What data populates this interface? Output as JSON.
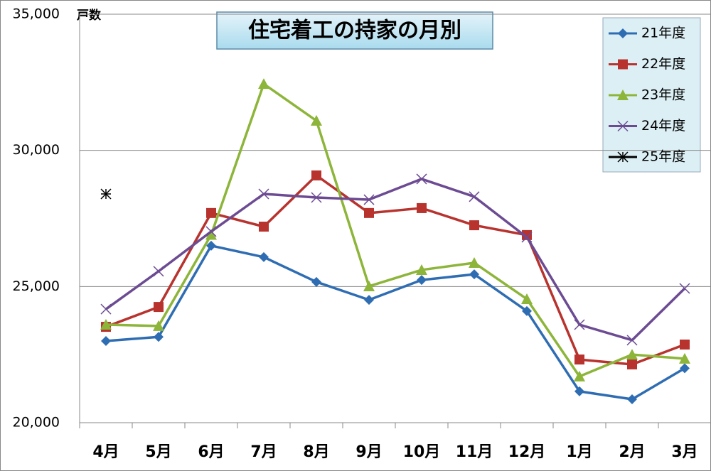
{
  "chart_data": {
    "type": "line",
    "title": "住宅着工の持家の月別",
    "ylabel": "戸数",
    "categories": [
      "4月",
      "5月",
      "6月",
      "7月",
      "8月",
      "9月",
      "10月",
      "11月",
      "12月",
      "1月",
      "2月",
      "3月"
    ],
    "series": [
      {
        "name": "21年度",
        "color": "#2f6db3",
        "marker": "diamond",
        "values": [
          23000,
          23150,
          26500,
          26080,
          25170,
          24510,
          25240,
          25450,
          24100,
          21150,
          20860,
          22000
        ]
      },
      {
        "name": "22年度",
        "color": "#b8332e",
        "marker": "square",
        "values": [
          23520,
          24250,
          27700,
          27200,
          29080,
          27700,
          27880,
          27250,
          26890,
          22320,
          22140,
          22870
        ]
      },
      {
        "name": "23年度",
        "color": "#8db53a",
        "marker": "triangle",
        "values": [
          23600,
          23550,
          26900,
          32440,
          31090,
          25010,
          25610,
          25870,
          24540,
          21700,
          22500,
          22350
        ]
      },
      {
        "name": "24年度",
        "color": "#6c4b93",
        "marker": "x",
        "values": [
          24170,
          25560,
          27020,
          28400,
          28270,
          28190,
          28950,
          28300,
          26810,
          23600,
          23030,
          24930
        ]
      },
      {
        "name": "25年度",
        "color": "#000000",
        "marker": "asterisk",
        "values": [
          28400,
          null,
          null,
          null,
          null,
          null,
          null,
          null,
          null,
          null,
          null,
          null
        ]
      }
    ],
    "ylim": [
      20000,
      35000
    ],
    "yticks": [
      {
        "value": 20000,
        "label": "20,000"
      },
      {
        "value": 25000,
        "label": "25,000"
      },
      {
        "value": 30000,
        "label": "30,000"
      },
      {
        "value": 35000,
        "label": "35,000"
      }
    ],
    "grid": true,
    "legend": "upper right"
  }
}
